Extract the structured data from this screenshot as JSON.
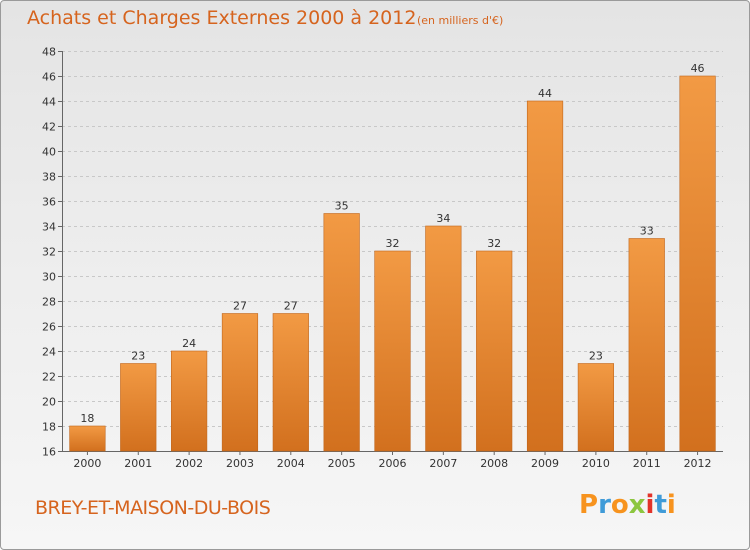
{
  "header": {
    "title": "Achats et Charges Externes 2000 à 2012",
    "unit": "(en milliers d'€)"
  },
  "footer": {
    "place": "BREY-ET-MAISON-DU-BOIS",
    "logo": {
      "letters": [
        "P",
        "r",
        "o",
        "x",
        "i",
        "t",
        "i"
      ],
      "colors": [
        "#f7931e",
        "#3f9bd8",
        "#f7931e",
        "#8cc63f",
        "#e2332a",
        "#3f9bd8",
        "#f7931e"
      ]
    }
  },
  "chart_data": {
    "type": "bar",
    "title": "Achats et Charges Externes 2000 à 2012",
    "categories": [
      "2000",
      "2001",
      "2002",
      "2003",
      "2004",
      "2005",
      "2006",
      "2007",
      "2008",
      "2009",
      "2010",
      "2011",
      "2012"
    ],
    "values": [
      18,
      23,
      24,
      27,
      27,
      35,
      32,
      34,
      32,
      44,
      23,
      33,
      46
    ],
    "ylim": [
      16,
      48
    ],
    "yticks": [
      16,
      18,
      20,
      22,
      24,
      26,
      28,
      30,
      32,
      34,
      36,
      38,
      40,
      42,
      44,
      46,
      48
    ],
    "grid": true,
    "bar_color": "#f29a44",
    "bar_color_dark": "#d2701e"
  }
}
